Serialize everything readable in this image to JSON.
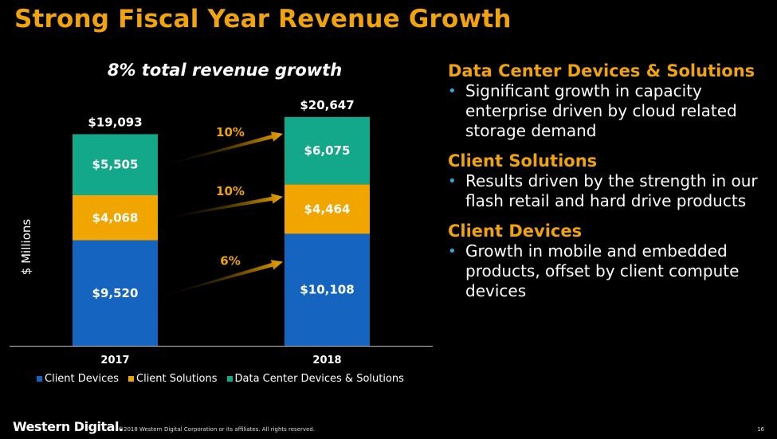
{
  "title": "Strong Fiscal Year Revenue Growth",
  "chart_data": {
    "type": "bar",
    "stacked": true,
    "subtitle": "8% total revenue growth",
    "ylabel": "$ Millions",
    "categories": [
      "2017",
      "2018"
    ],
    "series": [
      {
        "name": "Client Devices",
        "color": "#1565c0",
        "values": [
          9520,
          10108
        ],
        "labels": [
          "$9,520",
          "$10,108"
        ]
      },
      {
        "name": "Client Solutions",
        "color": "#f0a500",
        "values": [
          4068,
          4464
        ],
        "labels": [
          "$4,068",
          "$4,464"
        ]
      },
      {
        "name": "Data Center Devices & Solutions",
        "color": "#13a88a",
        "values": [
          5505,
          6075
        ],
        "labels": [
          "$5,505",
          "$6,075"
        ]
      }
    ],
    "totals": [
      "$19,093",
      "$20,647"
    ],
    "growth": [
      {
        "series": "Client Devices",
        "label": "6%"
      },
      {
        "series": "Client Solutions",
        "label": "10%"
      },
      {
        "series": "Data Center Devices & Solutions",
        "label": "10%"
      }
    ],
    "ylim": [
      0,
      21000
    ]
  },
  "sections": [
    {
      "title": "Data Center Devices & Solutions",
      "text": "Significant growth in capacity enterprise driven by cloud related storage demand"
    },
    {
      "title": "Client Solutions",
      "text": "Results driven by the strength in our flash retail and hard drive products"
    },
    {
      "title": "Client Devices",
      "text": "Growth in mobile and embedded products, offset by client compute devices"
    }
  ],
  "footer": {
    "logo": "Western Digital.",
    "copyright": "©2018 Western Digital Corporation or its affiliates. All rights reserved.",
    "page": "16"
  }
}
